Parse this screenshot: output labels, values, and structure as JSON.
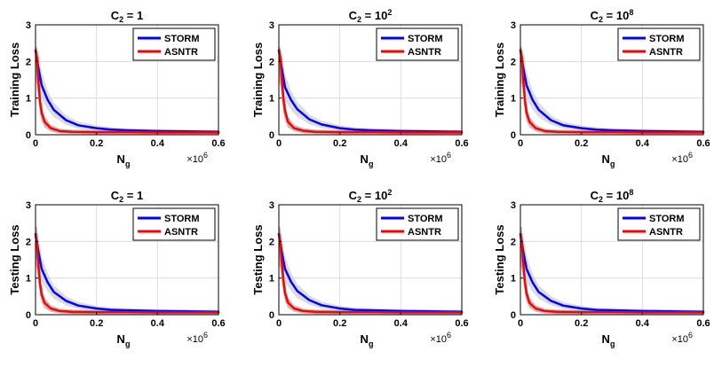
{
  "chart_data": [
    {
      "type": "line",
      "title": "C2 = 1",
      "title_base": "C",
      "title_sub": "2",
      "title_rhs": " = 1",
      "title_sup": "",
      "xlabel": "N",
      "xlabel_sub": "g",
      "x_multiplier": "×10",
      "x_multiplier_exp": "6",
      "ylabel": "Training Loss",
      "xlim": [
        0,
        0.6
      ],
      "ylim": [
        0,
        3
      ],
      "xticks": [
        "0",
        "0.2",
        "0.4",
        "0.6"
      ],
      "yticks": [
        "0",
        "1",
        "2",
        "3"
      ],
      "grid": true,
      "legend_position": "top-right",
      "series": [
        {
          "name": "STORM",
          "color": "#0000ff",
          "x": [
            0,
            0.01,
            0.02,
            0.04,
            0.06,
            0.1,
            0.14,
            0.2,
            0.25,
            0.3,
            0.4,
            0.5,
            0.6
          ],
          "y": [
            2.3,
            1.8,
            1.35,
            0.95,
            0.68,
            0.4,
            0.26,
            0.18,
            0.14,
            0.12,
            0.1,
            0.09,
            0.08
          ]
        },
        {
          "name": "ASNTR",
          "color": "#ff0000",
          "x": [
            0,
            0.005,
            0.01,
            0.015,
            0.02,
            0.03,
            0.05,
            0.08,
            0.12,
            0.2,
            0.3,
            0.4,
            0.5,
            0.6
          ],
          "y": [
            2.3,
            2.1,
            1.4,
            0.9,
            0.6,
            0.35,
            0.18,
            0.1,
            0.08,
            0.07,
            0.07,
            0.06,
            0.06,
            0.06
          ]
        }
      ]
    },
    {
      "type": "line",
      "title": "C2 = 10^2",
      "title_base": "C",
      "title_sub": "2",
      "title_rhs": " = 10",
      "title_sup": "2",
      "xlabel": "N",
      "xlabel_sub": "g",
      "x_multiplier": "×10",
      "x_multiplier_exp": "6",
      "ylabel": "Training Loss",
      "xlim": [
        0,
        0.6
      ],
      "ylim": [
        0,
        3
      ],
      "xticks": [
        "0",
        "0.2",
        "0.4",
        "0.6"
      ],
      "yticks": [
        "0",
        "1",
        "2",
        "3"
      ],
      "grid": true,
      "legend_position": "top-right",
      "series": [
        {
          "name": "STORM",
          "color": "#0000ff",
          "x": [
            0,
            0.01,
            0.02,
            0.04,
            0.06,
            0.1,
            0.14,
            0.2,
            0.25,
            0.3,
            0.4,
            0.5,
            0.6
          ],
          "y": [
            2.3,
            1.8,
            1.3,
            0.95,
            0.7,
            0.42,
            0.28,
            0.18,
            0.14,
            0.12,
            0.1,
            0.09,
            0.08
          ]
        },
        {
          "name": "ASNTR",
          "color": "#ff0000",
          "x": [
            0,
            0.005,
            0.01,
            0.015,
            0.02,
            0.03,
            0.05,
            0.08,
            0.12,
            0.2,
            0.3,
            0.4,
            0.5,
            0.6
          ],
          "y": [
            2.3,
            2.1,
            1.5,
            1.0,
            0.65,
            0.35,
            0.18,
            0.11,
            0.08,
            0.07,
            0.07,
            0.06,
            0.06,
            0.06
          ]
        }
      ]
    },
    {
      "type": "line",
      "title": "C2 = 10^8",
      "title_base": "C",
      "title_sub": "2",
      "title_rhs": " = 10",
      "title_sup": "8",
      "xlabel": "N",
      "xlabel_sub": "g",
      "x_multiplier": "×10",
      "x_multiplier_exp": "6",
      "ylabel": "Training Loss",
      "xlim": [
        0,
        0.6
      ],
      "ylim": [
        0,
        3
      ],
      "xticks": [
        "0",
        "0.2",
        "0.4",
        "0.6"
      ],
      "yticks": [
        "0",
        "1",
        "2",
        "3"
      ],
      "grid": true,
      "legend_position": "top-right",
      "series": [
        {
          "name": "STORM",
          "color": "#0000ff",
          "x": [
            0,
            0.01,
            0.02,
            0.04,
            0.06,
            0.1,
            0.14,
            0.2,
            0.25,
            0.3,
            0.4,
            0.5,
            0.6
          ],
          "y": [
            2.3,
            1.8,
            1.35,
            0.95,
            0.68,
            0.4,
            0.26,
            0.18,
            0.14,
            0.12,
            0.1,
            0.09,
            0.08
          ]
        },
        {
          "name": "ASNTR",
          "color": "#ff0000",
          "x": [
            0,
            0.005,
            0.01,
            0.015,
            0.02,
            0.03,
            0.05,
            0.08,
            0.12,
            0.2,
            0.3,
            0.4,
            0.5,
            0.6
          ],
          "y": [
            2.3,
            2.1,
            1.45,
            0.95,
            0.6,
            0.35,
            0.18,
            0.1,
            0.08,
            0.07,
            0.07,
            0.06,
            0.06,
            0.06
          ]
        }
      ]
    },
    {
      "type": "line",
      "title": "C2 = 1",
      "title_base": "C",
      "title_sub": "2",
      "title_rhs": " = 1",
      "title_sup": "",
      "xlabel": "N",
      "xlabel_sub": "g",
      "x_multiplier": "×10",
      "x_multiplier_exp": "6",
      "ylabel": "Testing Loss",
      "xlim": [
        0,
        0.6
      ],
      "ylim": [
        0,
        3
      ],
      "xticks": [
        "0",
        "0.2",
        "0.4",
        "0.6"
      ],
      "yticks": [
        "0",
        "1",
        "2",
        "3"
      ],
      "grid": true,
      "legend_position": "top-right",
      "series": [
        {
          "name": "STORM",
          "color": "#0000ff",
          "x": [
            0,
            0.01,
            0.02,
            0.04,
            0.06,
            0.1,
            0.14,
            0.2,
            0.25,
            0.3,
            0.4,
            0.5,
            0.6
          ],
          "y": [
            2.2,
            1.7,
            1.25,
            0.88,
            0.62,
            0.38,
            0.25,
            0.17,
            0.13,
            0.12,
            0.1,
            0.09,
            0.08
          ]
        },
        {
          "name": "ASNTR",
          "color": "#ff0000",
          "x": [
            0,
            0.005,
            0.01,
            0.015,
            0.02,
            0.03,
            0.05,
            0.08,
            0.12,
            0.2,
            0.3,
            0.4,
            0.5,
            0.6
          ],
          "y": [
            2.2,
            1.9,
            1.3,
            0.85,
            0.55,
            0.32,
            0.17,
            0.1,
            0.08,
            0.07,
            0.07,
            0.06,
            0.06,
            0.06
          ]
        }
      ]
    },
    {
      "type": "line",
      "title": "C2 = 10^2",
      "title_base": "C",
      "title_sub": "2",
      "title_rhs": " = 10",
      "title_sup": "2",
      "xlabel": "N",
      "xlabel_sub": "g",
      "x_multiplier": "×10",
      "x_multiplier_exp": "6",
      "ylabel": "Testing Loss",
      "xlim": [
        0,
        0.6
      ],
      "ylim": [
        0,
        3
      ],
      "xticks": [
        "0",
        "0.2",
        "0.4",
        "0.6"
      ],
      "yticks": [
        "0",
        "1",
        "2",
        "3"
      ],
      "grid": true,
      "legend_position": "top-right",
      "series": [
        {
          "name": "STORM",
          "color": "#0000ff",
          "x": [
            0,
            0.01,
            0.02,
            0.04,
            0.06,
            0.1,
            0.14,
            0.2,
            0.25,
            0.3,
            0.4,
            0.5,
            0.6
          ],
          "y": [
            2.2,
            1.7,
            1.25,
            0.9,
            0.65,
            0.4,
            0.26,
            0.17,
            0.13,
            0.12,
            0.1,
            0.09,
            0.08
          ]
        },
        {
          "name": "ASNTR",
          "color": "#ff0000",
          "x": [
            0,
            0.005,
            0.01,
            0.015,
            0.02,
            0.03,
            0.05,
            0.08,
            0.12,
            0.2,
            0.3,
            0.4,
            0.5,
            0.6
          ],
          "y": [
            2.2,
            1.95,
            1.4,
            0.95,
            0.6,
            0.33,
            0.17,
            0.1,
            0.08,
            0.07,
            0.07,
            0.06,
            0.06,
            0.06
          ]
        }
      ]
    },
    {
      "type": "line",
      "title": "C2 = 10^8",
      "title_base": "C",
      "title_sub": "2",
      "title_rhs": " = 10",
      "title_sup": "8",
      "xlabel": "N",
      "xlabel_sub": "g",
      "x_multiplier": "×10",
      "x_multiplier_exp": "6",
      "ylabel": "Testing Loss",
      "xlim": [
        0,
        0.6
      ],
      "ylim": [
        0,
        3
      ],
      "xticks": [
        "0",
        "0.2",
        "0.4",
        "0.6"
      ],
      "yticks": [
        "0",
        "1",
        "2",
        "3"
      ],
      "grid": true,
      "legend_position": "top-right",
      "series": [
        {
          "name": "STORM",
          "color": "#0000ff",
          "x": [
            0,
            0.01,
            0.02,
            0.04,
            0.06,
            0.1,
            0.14,
            0.2,
            0.25,
            0.3,
            0.4,
            0.5,
            0.6
          ],
          "y": [
            2.2,
            1.7,
            1.25,
            0.88,
            0.62,
            0.38,
            0.25,
            0.17,
            0.13,
            0.12,
            0.1,
            0.09,
            0.08
          ]
        },
        {
          "name": "ASNTR",
          "color": "#ff0000",
          "x": [
            0,
            0.005,
            0.01,
            0.015,
            0.02,
            0.03,
            0.05,
            0.08,
            0.12,
            0.2,
            0.3,
            0.4,
            0.5,
            0.6
          ],
          "y": [
            2.2,
            1.9,
            1.35,
            0.9,
            0.58,
            0.32,
            0.17,
            0.1,
            0.08,
            0.07,
            0.07,
            0.06,
            0.06,
            0.06
          ]
        }
      ]
    }
  ]
}
